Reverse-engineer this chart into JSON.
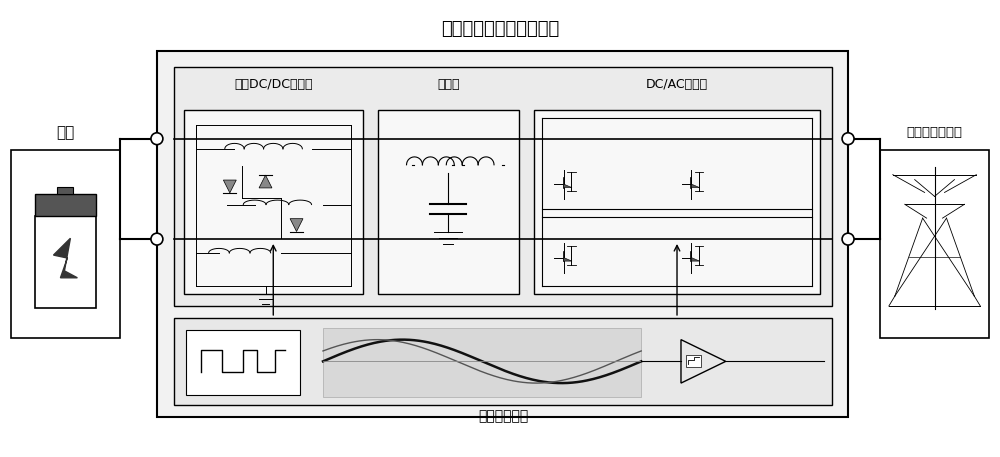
{
  "title": "储能系统交直流通用接口",
  "label_storage": "储能",
  "label_grid": "交流或直流电网",
  "label_dcdc": "双向DC/DC变换器",
  "label_filter": "滤波器",
  "label_inverter": "DC/AC逆变器",
  "label_control": "控制信号单元",
  "bg_color": "#ffffff",
  "outer_box_face": "#f2f2f2",
  "upper_box_face": "#ebebeb",
  "lower_box_face": "#e8e8e8",
  "sub_box_face": "#f8f8f8",
  "sine_bg_face": "#d8d8d8",
  "bat_body_face": "#e0e0e0",
  "bat_top_face": "#666666",
  "grid_box_face": "#f0f0f0",
  "line_color": "#000000",
  "title_fontsize": 13,
  "label_fontsize": 11,
  "small_label_fontsize": 9,
  "fig_w": 10.0,
  "fig_h": 4.57,
  "dpi": 100
}
